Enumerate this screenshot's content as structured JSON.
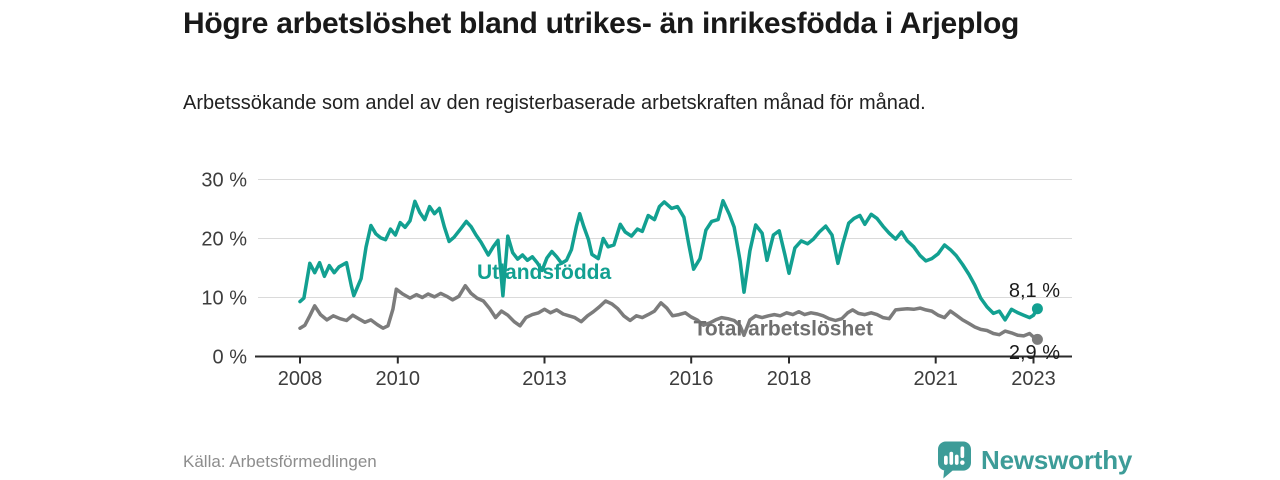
{
  "title": "Högre arbetslöshet bland utrikes- än inrikesfödda i Arjeplog",
  "subtitle": "Arbetssökande som andel av den registerbaserade arbetskraften månad för månad.",
  "source": "Källa: Arbetsförmedlingen",
  "brand": {
    "name": "Newsworthy",
    "color": "#3d9c98"
  },
  "colors": {
    "series_foreign": "#12a091",
    "series_total": "#7c7c7c",
    "grid": "#dadada",
    "axis": "#2b2b2b",
    "tick_label": "#3d3d3d",
    "value_label": "#1a1a1a",
    "total_label": "#6f6f6f"
  },
  "chart_data": {
    "type": "line",
    "title": "Högre arbetslöshet bland utrikes- än inrikesfödda i Arjeplog",
    "xlabel": "",
    "ylabel": "Arbetssökande som andel av den registerbaserade arbetskraften (%)",
    "unit": "%",
    "grid": "horizontal",
    "legend_position": "inline",
    "xlim": [
      2007.05,
      2023.6
    ],
    "ylim": [
      0,
      30
    ],
    "x_ticks": [
      {
        "value": 2008,
        "label": "2008"
      },
      {
        "value": 2010,
        "label": "2010"
      },
      {
        "value": 2013,
        "label": "2013"
      },
      {
        "value": 2016,
        "label": "2016"
      },
      {
        "value": 2018,
        "label": "2018"
      },
      {
        "value": 2021,
        "label": "2021"
      },
      {
        "value": 2023,
        "label": "2023"
      }
    ],
    "y_ticks": [
      {
        "value": 0,
        "label": "0 %"
      },
      {
        "value": 10,
        "label": "10 %"
      },
      {
        "value": 20,
        "label": "20 %"
      },
      {
        "value": 30,
        "label": "30 %"
      }
    ],
    "series": [
      {
        "name": "Utlandsfödda",
        "color": "#12a091",
        "end_label": "8,1 %",
        "end_value": 8.1,
        "inline_label": {
          "text": "Utlandsfödda",
          "x": 2011.62,
          "y": 13.1
        },
        "points": [
          [
            2008.0,
            9.3
          ],
          [
            2008.08,
            9.9
          ],
          [
            2008.2,
            15.8
          ],
          [
            2008.3,
            14.2
          ],
          [
            2008.4,
            15.9
          ],
          [
            2008.5,
            13.6
          ],
          [
            2008.6,
            15.4
          ],
          [
            2008.7,
            14.2
          ],
          [
            2008.8,
            15.2
          ],
          [
            2008.95,
            15.9
          ],
          [
            2009.05,
            12.0
          ],
          [
            2009.1,
            10.3
          ],
          [
            2009.25,
            13.2
          ],
          [
            2009.35,
            18.5
          ],
          [
            2009.45,
            22.2
          ],
          [
            2009.55,
            20.8
          ],
          [
            2009.65,
            20.1
          ],
          [
            2009.75,
            19.8
          ],
          [
            2009.85,
            21.6
          ],
          [
            2009.95,
            20.6
          ],
          [
            2010.05,
            22.7
          ],
          [
            2010.15,
            21.9
          ],
          [
            2010.25,
            23.0
          ],
          [
            2010.35,
            26.3
          ],
          [
            2010.45,
            24.4
          ],
          [
            2010.55,
            23.2
          ],
          [
            2010.65,
            25.4
          ],
          [
            2010.75,
            24.2
          ],
          [
            2010.85,
            25.1
          ],
          [
            2010.95,
            22.0
          ],
          [
            2011.05,
            19.5
          ],
          [
            2011.15,
            20.2
          ],
          [
            2011.3,
            21.8
          ],
          [
            2011.4,
            22.9
          ],
          [
            2011.5,
            22.0
          ],
          [
            2011.6,
            20.6
          ],
          [
            2011.7,
            19.4
          ],
          [
            2011.85,
            17.2
          ],
          [
            2011.95,
            18.6
          ],
          [
            2012.05,
            19.7
          ],
          [
            2012.15,
            10.3
          ],
          [
            2012.25,
            20.4
          ],
          [
            2012.35,
            17.6
          ],
          [
            2012.45,
            16.5
          ],
          [
            2012.55,
            17.2
          ],
          [
            2012.65,
            16.3
          ],
          [
            2012.75,
            16.9
          ],
          [
            2012.85,
            15.9
          ],
          [
            2012.95,
            14.6
          ],
          [
            2013.05,
            16.7
          ],
          [
            2013.15,
            17.8
          ],
          [
            2013.25,
            16.9
          ],
          [
            2013.35,
            15.8
          ],
          [
            2013.45,
            16.3
          ],
          [
            2013.55,
            18.1
          ],
          [
            2013.65,
            22.0
          ],
          [
            2013.72,
            24.2
          ],
          [
            2013.8,
            22.1
          ],
          [
            2013.9,
            19.8
          ],
          [
            2013.97,
            17.3
          ],
          [
            2014.1,
            16.6
          ],
          [
            2014.2,
            20.0
          ],
          [
            2014.3,
            18.6
          ],
          [
            2014.42,
            18.9
          ],
          [
            2014.55,
            22.4
          ],
          [
            2014.65,
            21.1
          ],
          [
            2014.78,
            20.4
          ],
          [
            2014.9,
            21.6
          ],
          [
            2015.0,
            21.2
          ],
          [
            2015.12,
            23.9
          ],
          [
            2015.25,
            23.2
          ],
          [
            2015.35,
            25.4
          ],
          [
            2015.45,
            26.2
          ],
          [
            2015.6,
            25.1
          ],
          [
            2015.72,
            25.4
          ],
          [
            2015.85,
            23.6
          ],
          [
            2015.95,
            19.0
          ],
          [
            2016.05,
            14.8
          ],
          [
            2016.18,
            16.6
          ],
          [
            2016.3,
            21.4
          ],
          [
            2016.42,
            22.9
          ],
          [
            2016.55,
            23.2
          ],
          [
            2016.65,
            26.4
          ],
          [
            2016.78,
            24.1
          ],
          [
            2016.88,
            21.9
          ],
          [
            2017.0,
            16.2
          ],
          [
            2017.08,
            10.9
          ],
          [
            2017.2,
            17.9
          ],
          [
            2017.32,
            22.3
          ],
          [
            2017.45,
            20.9
          ],
          [
            2017.55,
            16.3
          ],
          [
            2017.68,
            20.6
          ],
          [
            2017.8,
            21.3
          ],
          [
            2017.92,
            17.1
          ],
          [
            2018.0,
            14.1
          ],
          [
            2018.12,
            18.4
          ],
          [
            2018.25,
            19.6
          ],
          [
            2018.38,
            19.1
          ],
          [
            2018.5,
            19.9
          ],
          [
            2018.62,
            21.1
          ],
          [
            2018.75,
            22.1
          ],
          [
            2018.88,
            20.6
          ],
          [
            2019.0,
            15.8
          ],
          [
            2019.1,
            19.1
          ],
          [
            2019.22,
            22.6
          ],
          [
            2019.33,
            23.4
          ],
          [
            2019.45,
            23.9
          ],
          [
            2019.55,
            22.4
          ],
          [
            2019.68,
            24.1
          ],
          [
            2019.8,
            23.4
          ],
          [
            2019.92,
            22.1
          ],
          [
            2020.05,
            20.9
          ],
          [
            2020.18,
            19.9
          ],
          [
            2020.3,
            21.1
          ],
          [
            2020.42,
            19.6
          ],
          [
            2020.55,
            18.6
          ],
          [
            2020.68,
            17.1
          ],
          [
            2020.8,
            16.2
          ],
          [
            2020.92,
            16.6
          ],
          [
            2021.05,
            17.4
          ],
          [
            2021.18,
            18.9
          ],
          [
            2021.3,
            18.1
          ],
          [
            2021.42,
            17.1
          ],
          [
            2021.55,
            15.6
          ],
          [
            2021.68,
            13.9
          ],
          [
            2021.8,
            12.1
          ],
          [
            2021.92,
            9.9
          ],
          [
            2022.05,
            8.4
          ],
          [
            2022.18,
            7.3
          ],
          [
            2022.3,
            7.7
          ],
          [
            2022.42,
            6.2
          ],
          [
            2022.55,
            8.0
          ],
          [
            2022.68,
            7.4
          ],
          [
            2022.8,
            7.0
          ],
          [
            2022.92,
            6.6
          ],
          [
            2023.0,
            7.0
          ],
          [
            2023.08,
            8.1
          ]
        ]
      },
      {
        "name": "Total arbetslöshet",
        "color": "#7c7c7c",
        "end_label": "2,9 %",
        "end_value": 2.9,
        "inline_label": {
          "text": "Total arbetslöshet",
          "x": 2016.05,
          "y": 3.6
        },
        "points": [
          [
            2008.0,
            4.8
          ],
          [
            2008.1,
            5.3
          ],
          [
            2008.2,
            6.9
          ],
          [
            2008.3,
            8.6
          ],
          [
            2008.42,
            7.1
          ],
          [
            2008.55,
            6.2
          ],
          [
            2008.68,
            6.9
          ],
          [
            2008.82,
            6.4
          ],
          [
            2008.95,
            6.1
          ],
          [
            2009.08,
            7.0
          ],
          [
            2009.2,
            6.4
          ],
          [
            2009.33,
            5.8
          ],
          [
            2009.45,
            6.2
          ],
          [
            2009.58,
            5.4
          ],
          [
            2009.7,
            4.8
          ],
          [
            2009.8,
            5.2
          ],
          [
            2009.9,
            8.0
          ],
          [
            2009.97,
            11.4
          ],
          [
            2010.1,
            10.6
          ],
          [
            2010.25,
            9.9
          ],
          [
            2010.38,
            10.5
          ],
          [
            2010.5,
            10.0
          ],
          [
            2010.62,
            10.6
          ],
          [
            2010.75,
            10.1
          ],
          [
            2010.88,
            10.7
          ],
          [
            2011.0,
            10.2
          ],
          [
            2011.12,
            9.6
          ],
          [
            2011.25,
            10.2
          ],
          [
            2011.38,
            12.0
          ],
          [
            2011.5,
            10.7
          ],
          [
            2011.62,
            9.9
          ],
          [
            2011.75,
            9.4
          ],
          [
            2011.88,
            8.1
          ],
          [
            2012.0,
            6.6
          ],
          [
            2012.12,
            7.7
          ],
          [
            2012.25,
            7.0
          ],
          [
            2012.38,
            5.9
          ],
          [
            2012.5,
            5.2
          ],
          [
            2012.62,
            6.6
          ],
          [
            2012.75,
            7.1
          ],
          [
            2012.88,
            7.4
          ],
          [
            2013.0,
            8.0
          ],
          [
            2013.12,
            7.4
          ],
          [
            2013.25,
            7.9
          ],
          [
            2013.38,
            7.2
          ],
          [
            2013.5,
            6.9
          ],
          [
            2013.62,
            6.6
          ],
          [
            2013.75,
            5.9
          ],
          [
            2013.88,
            6.9
          ],
          [
            2014.0,
            7.6
          ],
          [
            2014.12,
            8.4
          ],
          [
            2014.25,
            9.4
          ],
          [
            2014.38,
            8.9
          ],
          [
            2014.5,
            8.1
          ],
          [
            2014.62,
            6.9
          ],
          [
            2014.75,
            6.1
          ],
          [
            2014.88,
            6.9
          ],
          [
            2015.0,
            6.6
          ],
          [
            2015.12,
            7.1
          ],
          [
            2015.25,
            7.7
          ],
          [
            2015.38,
            9.1
          ],
          [
            2015.5,
            8.2
          ],
          [
            2015.62,
            6.9
          ],
          [
            2015.75,
            7.1
          ],
          [
            2015.88,
            7.4
          ],
          [
            2016.0,
            6.7
          ],
          [
            2016.12,
            6.2
          ],
          [
            2016.25,
            5.3
          ],
          [
            2016.38,
            5.7
          ],
          [
            2016.5,
            6.2
          ],
          [
            2016.62,
            6.6
          ],
          [
            2016.75,
            6.4
          ],
          [
            2016.88,
            6.1
          ],
          [
            2017.0,
            5.2
          ],
          [
            2017.08,
            3.6
          ],
          [
            2017.2,
            6.2
          ],
          [
            2017.32,
            6.9
          ],
          [
            2017.45,
            6.6
          ],
          [
            2017.58,
            6.9
          ],
          [
            2017.7,
            7.1
          ],
          [
            2017.82,
            6.9
          ],
          [
            2017.95,
            7.4
          ],
          [
            2018.08,
            7.1
          ],
          [
            2018.2,
            7.6
          ],
          [
            2018.32,
            7.1
          ],
          [
            2018.45,
            7.4
          ],
          [
            2018.58,
            7.2
          ],
          [
            2018.7,
            6.9
          ],
          [
            2018.82,
            6.4
          ],
          [
            2018.95,
            6.1
          ],
          [
            2019.08,
            6.4
          ],
          [
            2019.2,
            7.4
          ],
          [
            2019.3,
            7.9
          ],
          [
            2019.42,
            7.3
          ],
          [
            2019.55,
            7.1
          ],
          [
            2019.68,
            7.4
          ],
          [
            2019.8,
            7.1
          ],
          [
            2019.92,
            6.6
          ],
          [
            2020.05,
            6.4
          ],
          [
            2020.18,
            7.9
          ],
          [
            2020.3,
            8.0
          ],
          [
            2020.42,
            8.1
          ],
          [
            2020.55,
            8.0
          ],
          [
            2020.68,
            8.2
          ],
          [
            2020.8,
            7.9
          ],
          [
            2020.92,
            7.7
          ],
          [
            2021.05,
            7.0
          ],
          [
            2021.18,
            6.6
          ],
          [
            2021.3,
            7.7
          ],
          [
            2021.42,
            7.0
          ],
          [
            2021.55,
            6.2
          ],
          [
            2021.68,
            5.6
          ],
          [
            2021.8,
            5.0
          ],
          [
            2021.92,
            4.6
          ],
          [
            2022.05,
            4.4
          ],
          [
            2022.18,
            3.9
          ],
          [
            2022.3,
            3.7
          ],
          [
            2022.42,
            4.3
          ],
          [
            2022.55,
            4.0
          ],
          [
            2022.68,
            3.6
          ],
          [
            2022.8,
            3.5
          ],
          [
            2022.92,
            3.9
          ],
          [
            2023.0,
            3.3
          ],
          [
            2023.08,
            2.9
          ]
        ]
      }
    ]
  }
}
